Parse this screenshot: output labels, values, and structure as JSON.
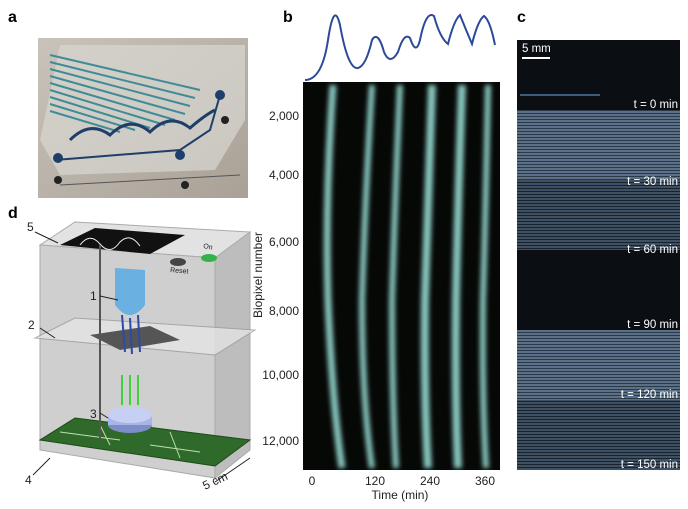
{
  "panels": {
    "a": {
      "label": "a"
    },
    "b": {
      "label": "b",
      "y_axis": {
        "title": "Biopixel number",
        "ticks": [
          "2,000",
          "4,000",
          "6,000",
          "8,000",
          "10,000",
          "12,000"
        ]
      },
      "x_axis": {
        "title": "Time (min)",
        "ticks": [
          "0",
          "120",
          "240",
          "360"
        ]
      }
    },
    "c": {
      "label": "c",
      "scale_bar": "5 mm",
      "timepoints": [
        "t = 0 min",
        "t = 30 min",
        "t = 60 min",
        "t = 90 min",
        "t = 120 min",
        "t = 150 min"
      ]
    },
    "d": {
      "label": "d",
      "callouts": [
        "1",
        "2",
        "3",
        "4",
        "5"
      ],
      "scale": "5 cm",
      "buttons": [
        "On",
        "Reset"
      ]
    }
  }
}
